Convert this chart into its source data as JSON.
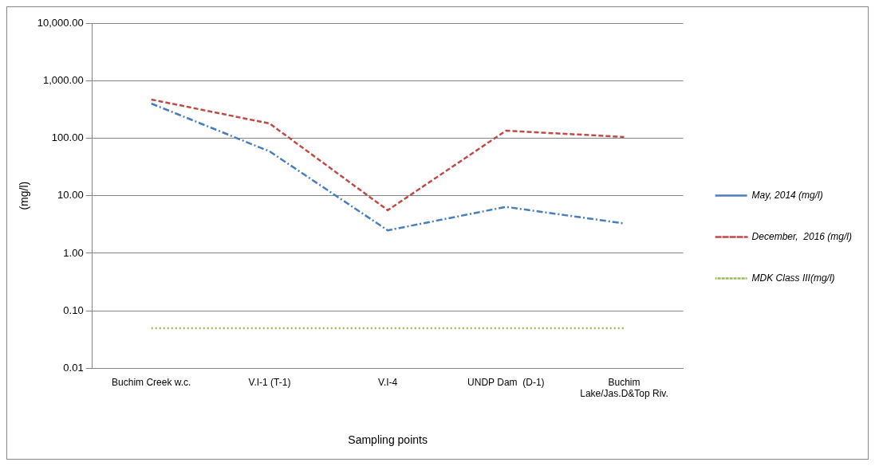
{
  "chart_data": {
    "type": "line",
    "xlabel": "Sampling points",
    "ylabel": "(mg/l)",
    "categories": [
      "Buchim Creek w.c.",
      "V.I-1 (T-1)",
      "V.I-4",
      "UNDP Dam  (D-1)",
      "Buchim Lake/Jas.D&Top Riv."
    ],
    "series": [
      {
        "name": "May, 2014 (mg/l)",
        "color": "#4a7ebb",
        "line_style": "dashdot",
        "values": [
          400,
          59,
          2.5,
          6.4,
          3.3
        ]
      },
      {
        "name": "December,  2016 (mg/l)",
        "color": "#be4b48",
        "line_style": "dashed",
        "values": [
          470,
          180,
          5.6,
          135,
          105
        ]
      },
      {
        "name": "MDK Class III(mg/l)",
        "color": "#9bbb59",
        "line_style": "dotted",
        "values": [
          0.05,
          0.05,
          0.05,
          0.05,
          0.05
        ]
      }
    ],
    "log": "y",
    "ylim": [
      0.01,
      10000
    ],
    "yticks": [
      {
        "value": 0.01,
        "label": "0.01"
      },
      {
        "value": 0.1,
        "label": "0.10"
      },
      {
        "value": 1,
        "label": "1.00"
      },
      {
        "value": 10,
        "label": "10.00"
      },
      {
        "value": 100,
        "label": "100.00"
      },
      {
        "value": 1000,
        "label": "1,000.00"
      },
      {
        "value": 10000,
        "label": "10,000.00"
      }
    ],
    "grid": "y",
    "legend": "right",
    "marker": "none"
  }
}
